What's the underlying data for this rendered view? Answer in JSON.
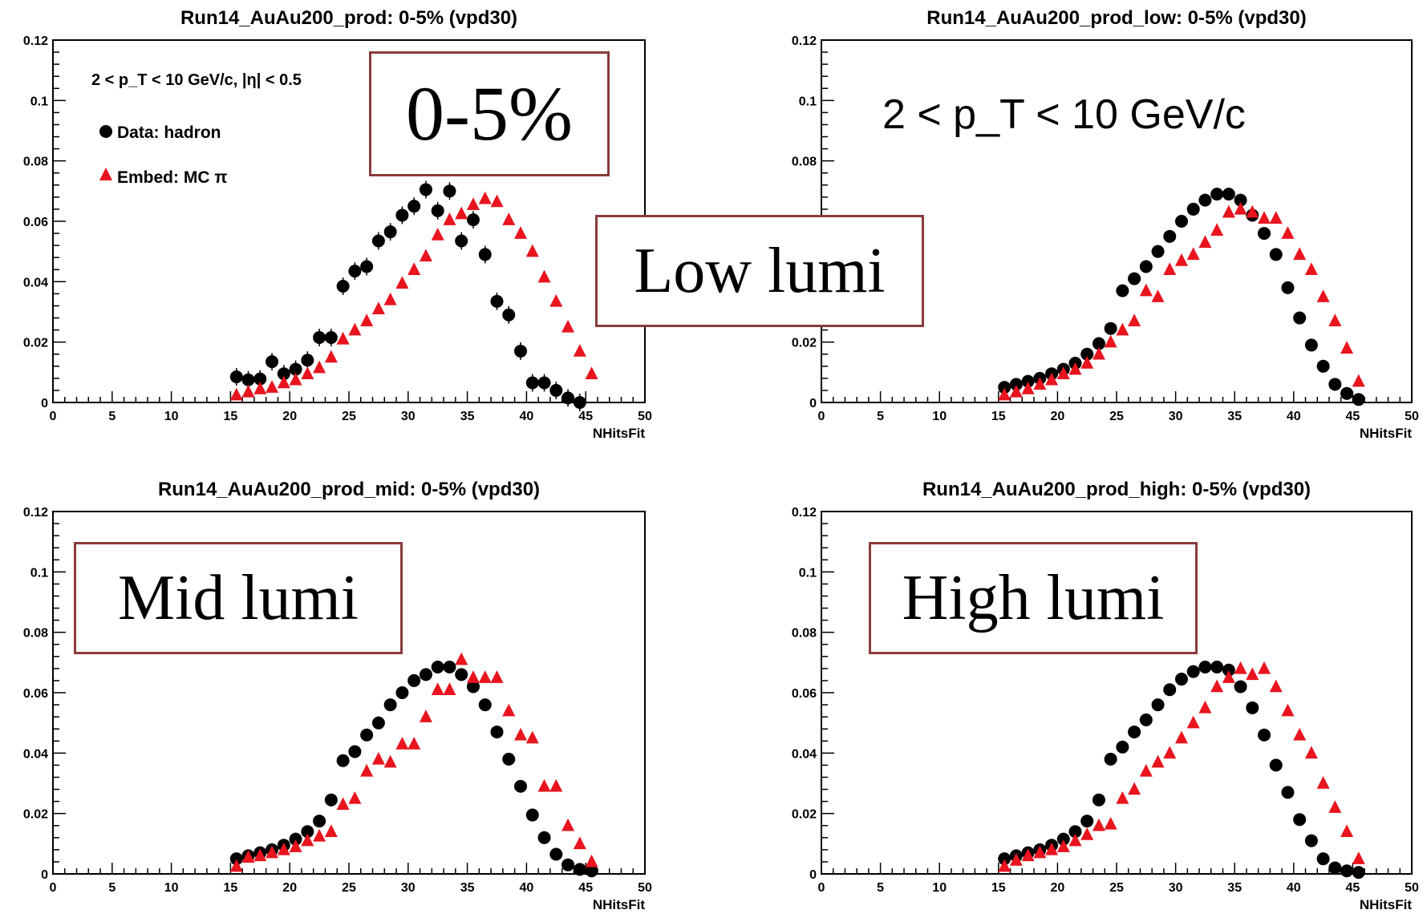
{
  "chart_data": [
    {
      "type": "scatter",
      "title": "Run14_AuAu200_prod: 0-5% (vpd30)",
      "xlabel": "NHitsFit",
      "ylabel": "",
      "xlim": [
        0,
        50
      ],
      "ylim": [
        0,
        0.12
      ],
      "xticks": [
        "0",
        "5",
        "10",
        "15",
        "20",
        "25",
        "30",
        "35",
        "40",
        "45",
        "50"
      ],
      "yticks": [
        "0",
        "0.02",
        "0.04",
        "0.06",
        "0.08",
        "0.1",
        "0.12"
      ],
      "annotation": "2 < p_T < 10 GeV/c, |η| < 0.5",
      "legend": [
        "Data: hadron",
        "Embed: MC π"
      ],
      "series": [
        {
          "name": "Data: hadron",
          "marker": "circle",
          "color": "#000000",
          "x": [
            15.5,
            16.5,
            17.5,
            18.5,
            19.5,
            20.5,
            21.5,
            22.5,
            23.5,
            24.5,
            25.5,
            26.5,
            27.5,
            28.5,
            29.5,
            30.5,
            31.5,
            32.5,
            33.5,
            34.5,
            35.5,
            36.5,
            37.5,
            38.5,
            39.5,
            40.5,
            41.5,
            42.5,
            43.5,
            44.5
          ],
          "values": [
            0.0085,
            0.0075,
            0.0078,
            0.0135,
            0.0095,
            0.011,
            0.014,
            0.0215,
            0.0215,
            0.0385,
            0.0435,
            0.045,
            0.0535,
            0.0565,
            0.062,
            0.065,
            0.0705,
            0.0635,
            0.07,
            0.0535,
            0.0605,
            0.049,
            0.0335,
            0.029,
            0.017,
            0.0065,
            0.0065,
            0.004,
            0.0015,
            0.0
          ]
        },
        {
          "name": "Embed: MC π",
          "marker": "triangle",
          "color": "#e8141e",
          "x": [
            15.5,
            16.5,
            17.5,
            18.5,
            19.5,
            20.5,
            21.5,
            22.5,
            23.5,
            24.5,
            25.5,
            26.5,
            27.5,
            28.5,
            29.5,
            30.5,
            31.5,
            32.5,
            33.5,
            34.5,
            35.5,
            36.5,
            37.5,
            38.5,
            39.5,
            40.5,
            41.5,
            42.5,
            43.5,
            44.5,
            45.5
          ],
          "values": [
            0.0025,
            0.0035,
            0.0045,
            0.005,
            0.0065,
            0.0075,
            0.0095,
            0.0115,
            0.015,
            0.021,
            0.024,
            0.027,
            0.031,
            0.034,
            0.0395,
            0.044,
            0.0485,
            0.0555,
            0.0605,
            0.0625,
            0.0655,
            0.0675,
            0.0665,
            0.0605,
            0.056,
            0.05,
            0.0415,
            0.0335,
            0.025,
            0.017,
            0.0095
          ]
        }
      ]
    },
    {
      "type": "scatter",
      "title": "Run14_AuAu200_prod_low: 0-5% (vpd30)",
      "xlabel": "NHitsFit",
      "ylabel": "",
      "xlim": [
        0,
        50
      ],
      "ylim": [
        0,
        0.12
      ],
      "xticks": [
        "0",
        "5",
        "10",
        "15",
        "20",
        "25",
        "30",
        "35",
        "40",
        "45",
        "50"
      ],
      "yticks": [
        "0",
        "0.02",
        "0.04",
        "0.06",
        "0.08",
        "0.1",
        "0.12"
      ],
      "annotation": "2 < p_T < 10 GeV/c",
      "series": [
        {
          "name": "Data: hadron",
          "marker": "circle",
          "color": "#000000",
          "x": [
            15.5,
            16.5,
            17.5,
            18.5,
            19.5,
            20.5,
            21.5,
            22.5,
            23.5,
            24.5,
            25.5,
            26.5,
            27.5,
            28.5,
            29.5,
            30.5,
            31.5,
            32.5,
            33.5,
            34.5,
            35.5,
            36.5,
            37.5,
            38.5,
            39.5,
            40.5,
            41.5,
            42.5,
            43.5,
            44.5,
            45.5
          ],
          "values": [
            0.005,
            0.006,
            0.007,
            0.008,
            0.0095,
            0.011,
            0.013,
            0.016,
            0.0195,
            0.0245,
            0.037,
            0.041,
            0.045,
            0.05,
            0.055,
            0.06,
            0.064,
            0.067,
            0.069,
            0.069,
            0.067,
            0.062,
            0.056,
            0.049,
            0.038,
            0.028,
            0.019,
            0.012,
            0.006,
            0.003,
            0.001
          ]
        },
        {
          "name": "Embed: MC π",
          "marker": "triangle",
          "color": "#e8141e",
          "x": [
            15.5,
            16.5,
            17.5,
            18.5,
            19.5,
            20.5,
            21.5,
            22.5,
            23.5,
            24.5,
            25.5,
            26.5,
            27.5,
            28.5,
            29.5,
            30.5,
            31.5,
            32.5,
            33.5,
            34.5,
            35.5,
            36.5,
            37.5,
            38.5,
            39.5,
            40.5,
            41.5,
            42.5,
            43.5,
            44.5,
            45.5
          ],
          "values": [
            0.0025,
            0.0035,
            0.0045,
            0.006,
            0.0075,
            0.0095,
            0.011,
            0.013,
            0.016,
            0.02,
            0.024,
            0.027,
            0.037,
            0.035,
            0.044,
            0.047,
            0.049,
            0.053,
            0.057,
            0.063,
            0.064,
            0.063,
            0.061,
            0.061,
            0.056,
            0.049,
            0.044,
            0.035,
            0.027,
            0.018,
            0.007
          ]
        }
      ]
    },
    {
      "type": "scatter",
      "title": "Run14_AuAu200_prod_mid: 0-5% (vpd30)",
      "xlabel": "NHitsFit",
      "ylabel": "",
      "xlim": [
        0,
        50
      ],
      "ylim": [
        0,
        0.12
      ],
      "xticks": [
        "0",
        "5",
        "10",
        "15",
        "20",
        "25",
        "30",
        "35",
        "40",
        "45",
        "50"
      ],
      "yticks": [
        "0",
        "0.02",
        "0.04",
        "0.06",
        "0.08",
        "0.1",
        "0.12"
      ],
      "series": [
        {
          "name": "Data: hadron",
          "marker": "circle",
          "color": "#000000",
          "x": [
            15.5,
            16.5,
            17.5,
            18.5,
            19.5,
            20.5,
            21.5,
            22.5,
            23.5,
            24.5,
            25.5,
            26.5,
            27.5,
            28.5,
            29.5,
            30.5,
            31.5,
            32.5,
            33.5,
            34.5,
            35.5,
            36.5,
            37.5,
            38.5,
            39.5,
            40.5,
            41.5,
            42.5,
            43.5,
            44.5,
            45.5
          ],
          "values": [
            0.005,
            0.006,
            0.007,
            0.008,
            0.0095,
            0.0115,
            0.014,
            0.0175,
            0.0245,
            0.0375,
            0.0405,
            0.046,
            0.05,
            0.056,
            0.06,
            0.064,
            0.066,
            0.0685,
            0.0685,
            0.066,
            0.062,
            0.056,
            0.047,
            0.038,
            0.029,
            0.0195,
            0.012,
            0.0065,
            0.003,
            0.0015,
            0.001
          ]
        },
        {
          "name": "Embed: MC π",
          "marker": "triangle",
          "color": "#e8141e",
          "x": [
            15.5,
            16.5,
            17.5,
            18.5,
            19.5,
            20.5,
            21.5,
            22.5,
            23.5,
            24.5,
            25.5,
            26.5,
            27.5,
            28.5,
            29.5,
            30.5,
            31.5,
            32.5,
            33.5,
            34.5,
            35.5,
            36.5,
            37.5,
            38.5,
            39.5,
            40.5,
            41.5,
            42.5,
            43.5,
            44.5,
            45.5
          ],
          "values": [
            0.0025,
            0.0055,
            0.006,
            0.007,
            0.008,
            0.009,
            0.011,
            0.0125,
            0.014,
            0.023,
            0.025,
            0.034,
            0.038,
            0.037,
            0.043,
            0.043,
            0.052,
            0.061,
            0.061,
            0.071,
            0.065,
            0.065,
            0.065,
            0.054,
            0.046,
            0.045,
            0.029,
            0.029,
            0.016,
            0.01,
            0.004
          ]
        }
      ]
    },
    {
      "type": "scatter",
      "title": "Run14_AuAu200_prod_high: 0-5% (vpd30)",
      "xlabel": "NHitsFit",
      "ylabel": "",
      "xlim": [
        0,
        50
      ],
      "ylim": [
        0,
        0.12
      ],
      "xticks": [
        "0",
        "5",
        "10",
        "15",
        "20",
        "25",
        "30",
        "35",
        "40",
        "45",
        "50"
      ],
      "yticks": [
        "0",
        "0.02",
        "0.04",
        "0.06",
        "0.08",
        "0.1",
        "0.12"
      ],
      "series": [
        {
          "name": "Data: hadron",
          "marker": "circle",
          "color": "#000000",
          "x": [
            15.5,
            16.5,
            17.5,
            18.5,
            19.5,
            20.5,
            21.5,
            22.5,
            23.5,
            24.5,
            25.5,
            26.5,
            27.5,
            28.5,
            29.5,
            30.5,
            31.5,
            32.5,
            33.5,
            34.5,
            35.5,
            36.5,
            37.5,
            38.5,
            39.5,
            40.5,
            41.5,
            42.5,
            43.5,
            44.5,
            45.5
          ],
          "values": [
            0.005,
            0.006,
            0.007,
            0.008,
            0.0095,
            0.0115,
            0.014,
            0.0175,
            0.0245,
            0.038,
            0.042,
            0.047,
            0.051,
            0.056,
            0.061,
            0.0645,
            0.067,
            0.0685,
            0.0685,
            0.0675,
            0.062,
            0.055,
            0.046,
            0.036,
            0.027,
            0.018,
            0.011,
            0.005,
            0.002,
            0.001,
            0.0005
          ]
        },
        {
          "name": "Embed: MC π",
          "marker": "triangle",
          "color": "#e8141e",
          "x": [
            15.5,
            16.5,
            17.5,
            18.5,
            19.5,
            20.5,
            21.5,
            22.5,
            23.5,
            24.5,
            25.5,
            26.5,
            27.5,
            28.5,
            29.5,
            30.5,
            31.5,
            32.5,
            33.5,
            34.5,
            35.5,
            36.5,
            37.5,
            38.5,
            39.5,
            40.5,
            41.5,
            42.5,
            43.5,
            44.5,
            45.5
          ],
          "values": [
            0.0025,
            0.0045,
            0.006,
            0.007,
            0.008,
            0.009,
            0.011,
            0.013,
            0.016,
            0.0165,
            0.025,
            0.028,
            0.034,
            0.037,
            0.04,
            0.045,
            0.05,
            0.055,
            0.062,
            0.065,
            0.068,
            0.066,
            0.068,
            0.062,
            0.054,
            0.046,
            0.04,
            0.03,
            0.022,
            0.014,
            0.005
          ]
        }
      ]
    }
  ],
  "overlay_labels": {
    "centrality": "0-5%",
    "low": "Low lumi",
    "mid": "Mid lumi",
    "high": "High lumi"
  }
}
